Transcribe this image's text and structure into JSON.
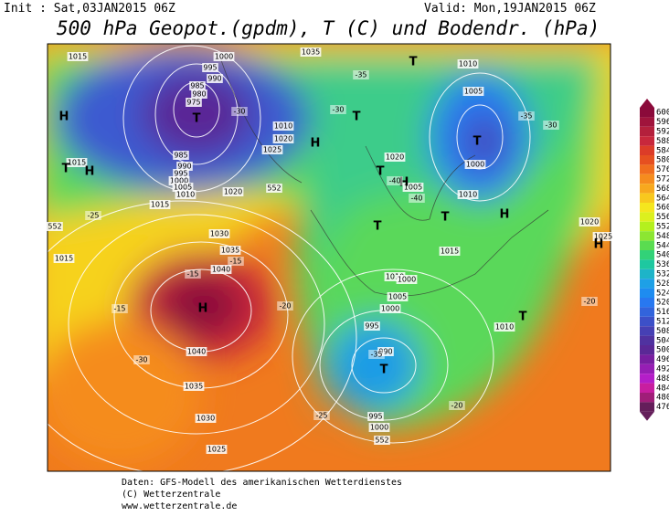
{
  "header": {
    "init": "Init : Sat,03JAN2015 06Z",
    "valid": "Valid: Mon,19JAN2015 06Z",
    "title": "500 hPa Geopot.(gpdm), T (C) und Bodendr. (hPa)"
  },
  "legend": {
    "labels": [
      600,
      596,
      592,
      588,
      584,
      580,
      576,
      572,
      568,
      564,
      560,
      556,
      552,
      548,
      544,
      540,
      536,
      532,
      528,
      524,
      520,
      516,
      512,
      508,
      504,
      500,
      496,
      492,
      488,
      484,
      480,
      476
    ],
    "colors": [
      "#8b0a3a",
      "#a0143c",
      "#b4203c",
      "#c8283c",
      "#dc3c28",
      "#e65020",
      "#f06e1e",
      "#f58c1e",
      "#f7a81e",
      "#f8c81e",
      "#f5e61e",
      "#dcf01e",
      "#b4f01e",
      "#8ce632",
      "#5adc50",
      "#32d278",
      "#1ec8a0",
      "#1eb4c8",
      "#1ea0e6",
      "#1e8cf0",
      "#2878f0",
      "#3264dc",
      "#3c50c8",
      "#4640b4",
      "#5032a0",
      "#5a2896",
      "#781ea0",
      "#961eb4",
      "#b41ec8",
      "#c81ea0",
      "#a01e78",
      "#641e5a"
    ]
  },
  "map": {
    "labels": [
      "1015",
      "1000",
      "995",
      "990",
      "985",
      "980",
      "975",
      "1035",
      "1010",
      "1005",
      "1000",
      "1015",
      "985",
      "990",
      "995",
      "1000",
      "1005",
      "1010",
      "1015",
      "1020",
      "1010",
      "1020",
      "1025",
      "1030",
      "1035",
      "1040",
      "H",
      "1040",
      "1035",
      "1030",
      "1025",
      "1015",
      "1020",
      "1005",
      "1010",
      "1015",
      "1010",
      "1005",
      "1000",
      "995",
      "990",
      "1000",
      "995",
      "1000",
      "1010",
      "1020",
      "1025",
      "H",
      "T",
      "H",
      "T",
      "H",
      "T",
      "T",
      "T",
      "H",
      "T",
      "H",
      "T",
      "T",
      "H",
      "T",
      "T",
      "-35",
      "-30",
      "-30",
      "-40",
      "-35",
      "-30",
      "-25",
      "-15",
      "-15",
      "-15",
      "-20",
      "-20",
      "-30",
      "-25",
      "-40",
      "-35",
      "-20",
      "552",
      "552",
      "552"
    ]
  },
  "footer": [
    "Daten: GFS-Modell des amerikanischen Wetterdienstes",
    "(C) Wetterzentrale",
    "www.wetterzentrale.de"
  ]
}
